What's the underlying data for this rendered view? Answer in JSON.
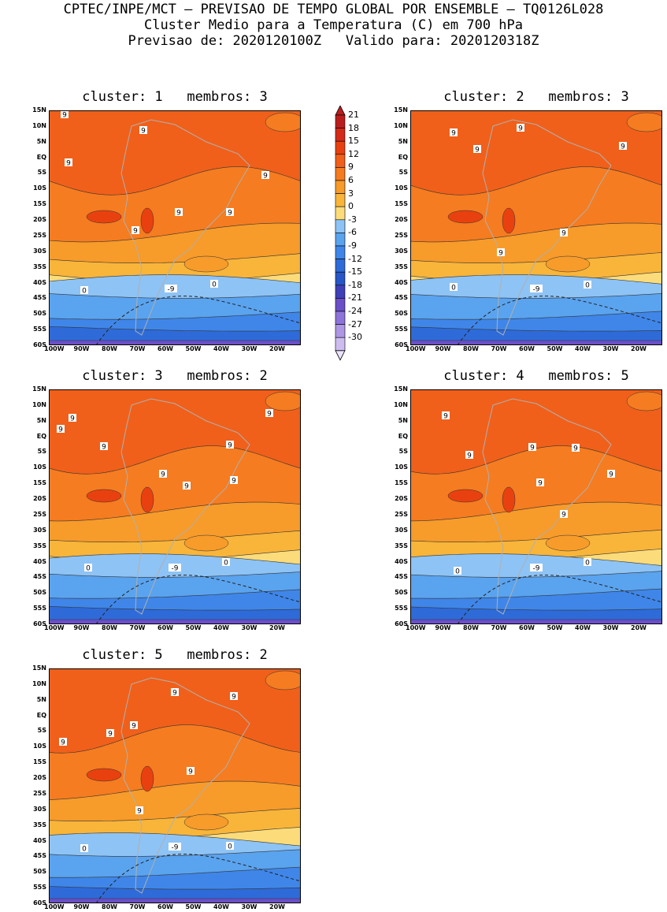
{
  "header": {
    "line1": "CPTEC/INPE/MCT – PREVISAO DE TEMPO GLOBAL POR ENSEMBLE – TQ0126L028",
    "line2": "Cluster Medio para a Temperatura (C) em 700 hPa",
    "line3": "Previsao de: 2020120100Z   Valido para: 2020120318Z"
  },
  "colorbar": {
    "labels": [
      "21",
      "18",
      "15",
      "12",
      "9",
      "6",
      "3",
      "0",
      "-3",
      "-6",
      "-9",
      "-12",
      "-15",
      "-18",
      "-21",
      "-24",
      "-27",
      "-30"
    ],
    "colors": [
      "#b91e1e",
      "#d42a1a",
      "#e8410f",
      "#f0601a",
      "#f57c20",
      "#f79b2a",
      "#f8b53a",
      "#fcdc7a",
      "#8ec3f5",
      "#5aa3ee",
      "#3f86e8",
      "#2e6bd8",
      "#2756c6",
      "#3e40b8",
      "#6a4fc8",
      "#8e73d8",
      "#ae97e3",
      "#cdbdef"
    ]
  },
  "panels": [
    {
      "title": "cluster: 1   membros: 3",
      "contours": [
        "9",
        "9",
        "9",
        "9",
        "9",
        "9",
        "9",
        "0",
        "0",
        "-9"
      ]
    },
    {
      "title": "cluster: 2   membros: 3",
      "contours": [
        "9",
        "9",
        "9",
        "9",
        "9",
        "9",
        "0",
        "0",
        "-9"
      ]
    },
    {
      "title": "cluster: 3   membros: 2",
      "contours": [
        "9",
        "9",
        "9",
        "9",
        "9",
        "9",
        "9",
        "9",
        "0",
        "0",
        "-9"
      ]
    },
    {
      "title": "cluster: 4   membros: 5",
      "contours": [
        "9",
        "9",
        "9",
        "9",
        "9",
        "9",
        "9",
        "0",
        "0",
        "-9"
      ]
    },
    {
      "title": "cluster: 5   membros: 2",
      "contours": [
        "9",
        "9",
        "9",
        "9",
        "9",
        "9",
        "9",
        "0",
        "0",
        "-9"
      ]
    }
  ],
  "axes": {
    "lat_labels": [
      "15N",
      "10N",
      "5N",
      "EQ",
      "5S",
      "10S",
      "15S",
      "20S",
      "25S",
      "30S",
      "35S",
      "40S",
      "45S",
      "50S",
      "55S",
      "60S"
    ],
    "lon_labels": [
      "100W",
      "90W",
      "80W",
      "70W",
      "60W",
      "50W",
      "40W",
      "30W",
      "20W"
    ]
  }
}
